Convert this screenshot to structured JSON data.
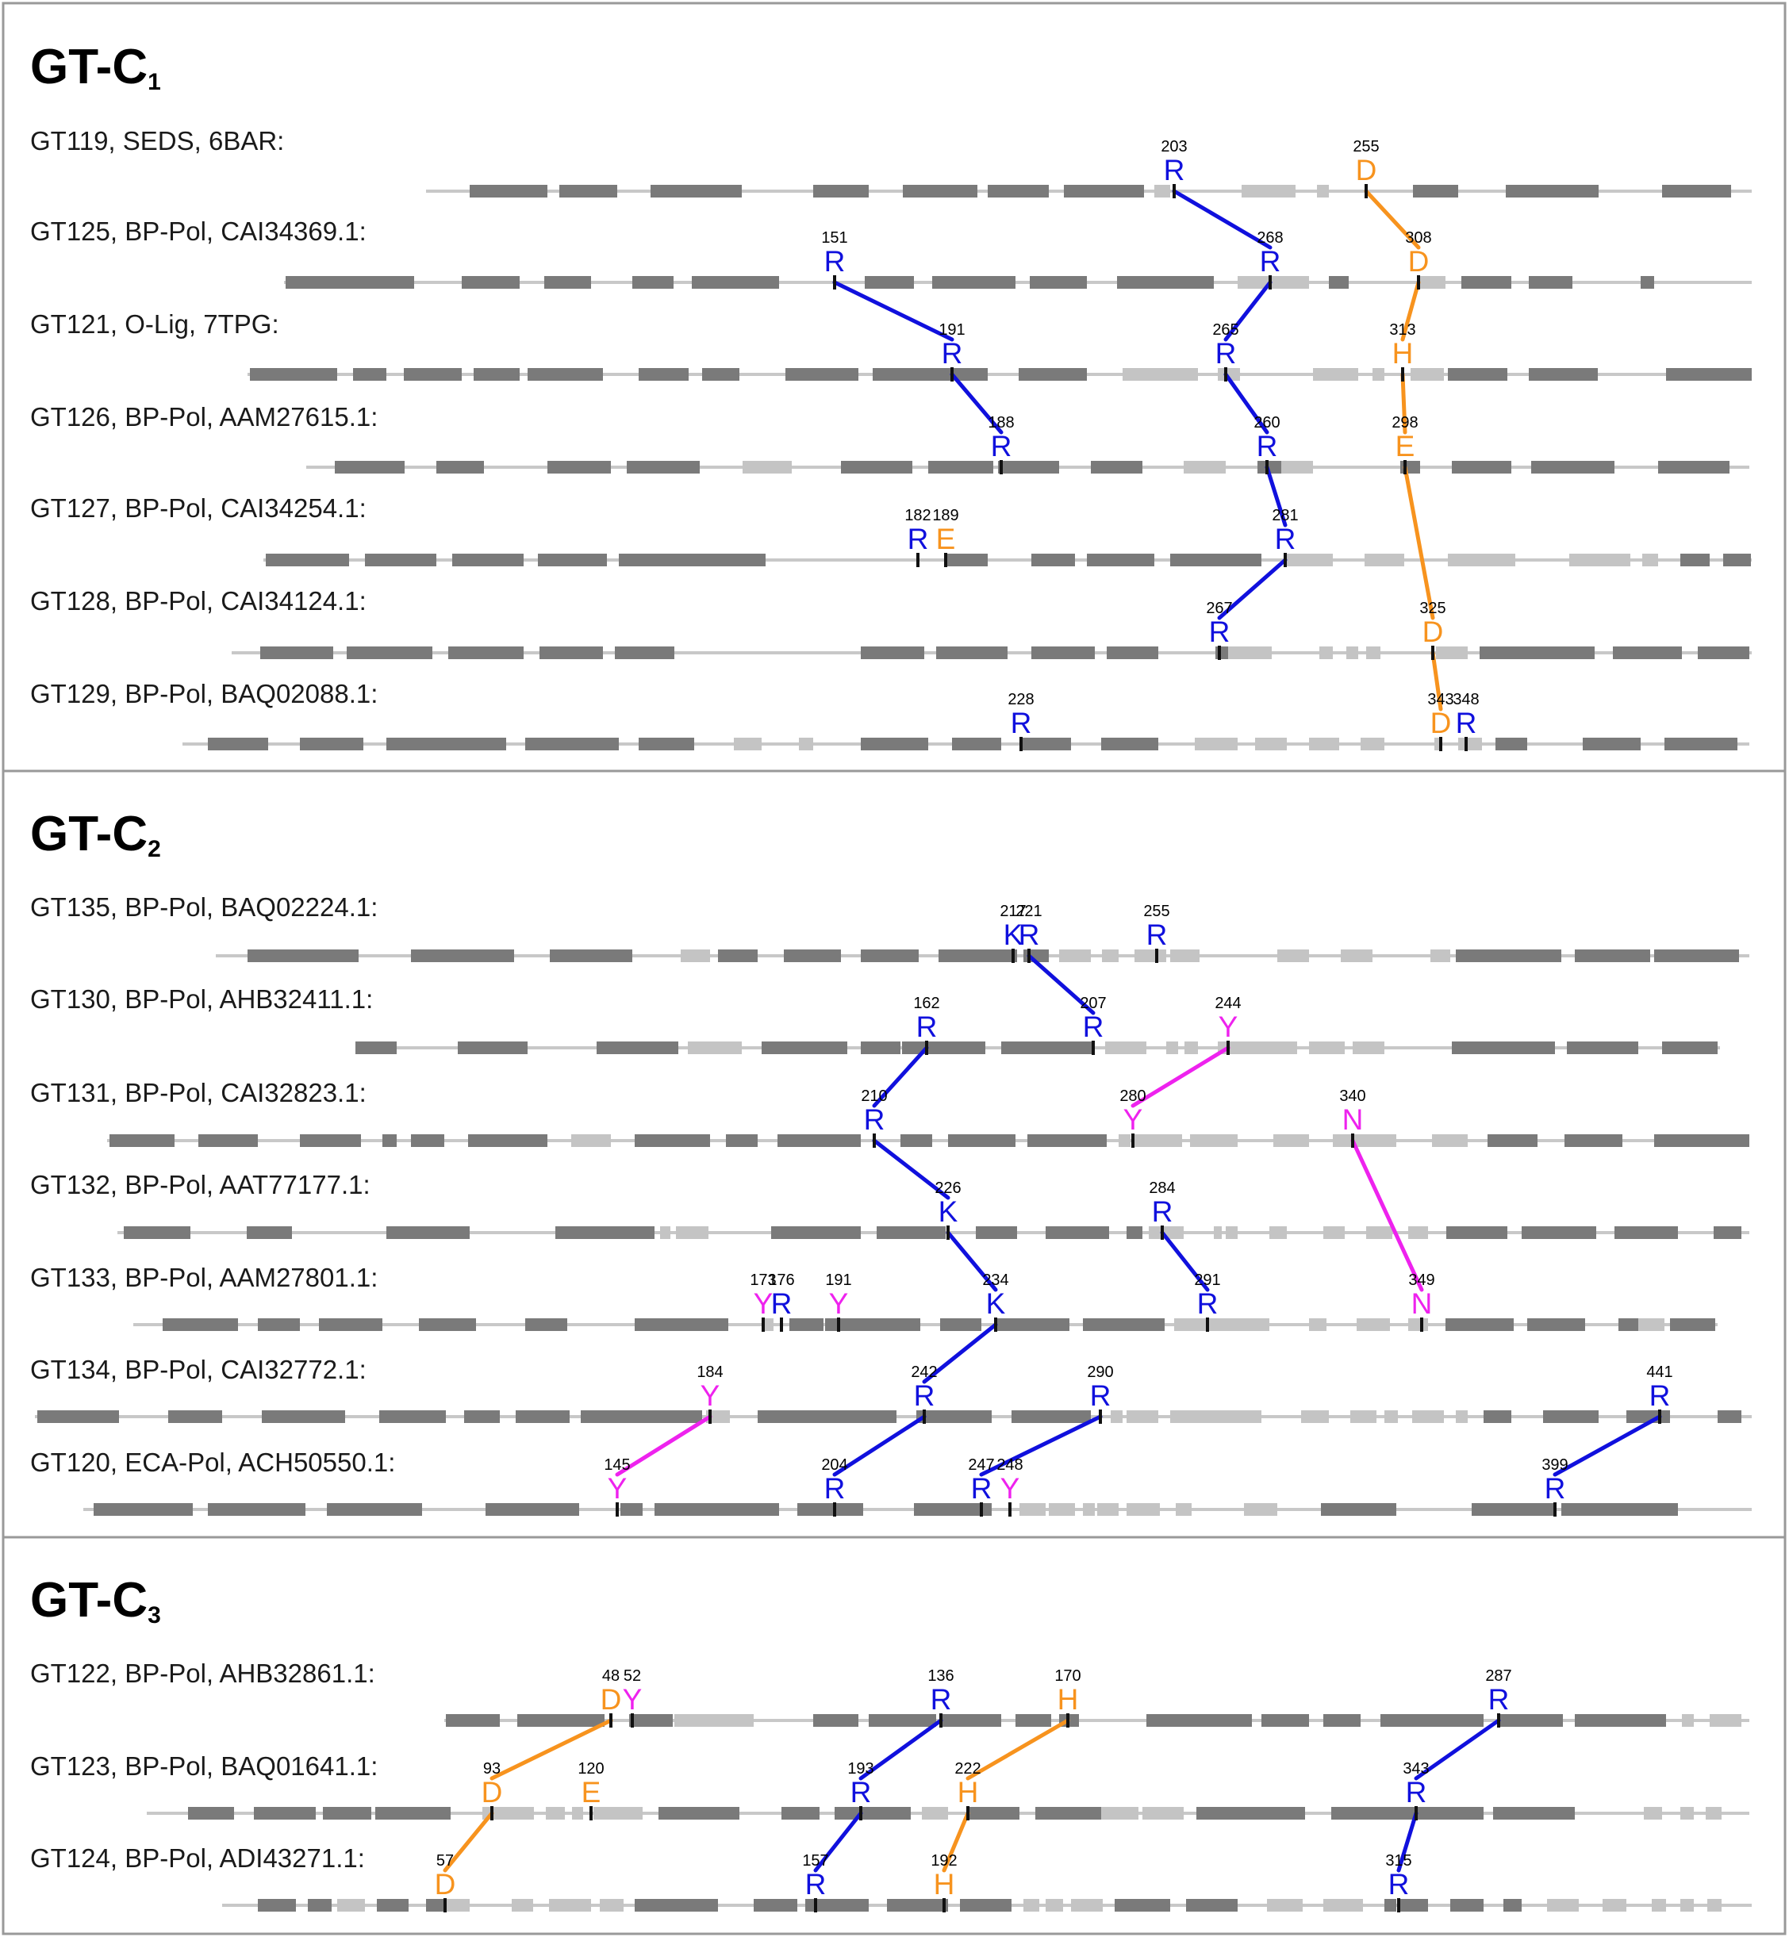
{
  "colors": {
    "blue": "#1010dd",
    "orange": "#f7931e",
    "magenta": "#ee22ee",
    "helix": "#7a7a7a",
    "strand": "#c4c4c4",
    "backbone": "#c8c8c8",
    "border": "#999999"
  },
  "panels": [
    {
      "title": "GT-C",
      "subscript": "1",
      "proteins": [
        {
          "label": "GT119, SEDS, 6BAR:"
        },
        {
          "label": "GT125, BP-Pol, CAI34369.1:"
        },
        {
          "label": "GT121, O-Lig, 7TPG:"
        },
        {
          "label": "GT126, BP-Pol, AAM27615.1:"
        },
        {
          "label": "GT127, BP-Pol, CAI34254.1:"
        },
        {
          "label": "GT128, BP-Pol, CAI34124.1:"
        },
        {
          "label": "GT129, BP-Pol, BAQ02088.1:"
        }
      ]
    },
    {
      "title": "GT-C",
      "subscript": "2",
      "proteins": [
        {
          "label": "GT135, BP-Pol, BAQ02224.1:"
        },
        {
          "label": "GT130, BP-Pol, AHB32411.1:"
        },
        {
          "label": "GT131, BP-Pol, CAI32823.1:"
        },
        {
          "label": "GT132, BP-Pol, AAT77177.1:"
        },
        {
          "label": "GT133, BP-Pol, AAM27801.1:"
        },
        {
          "label": "GT134, BP-Pol, CAI32772.1:"
        },
        {
          "label": "GT120, ECA-Pol, ACH50550.1:"
        }
      ]
    },
    {
      "title": "GT-C",
      "subscript": "3",
      "proteins": [
        {
          "label": "GT122, BP-Pol, AHB32861.1:"
        },
        {
          "label": "GT123, BP-Pol, BAQ01641.1:"
        },
        {
          "label": "GT124, BP-Pol, ADI43271.1:"
        }
      ]
    }
  ],
  "residues": [
    {
      "num": "203",
      "letter": "R",
      "color": "blue"
    },
    {
      "num": "255",
      "letter": "D",
      "color": "orange"
    },
    {
      "num": "151",
      "letter": "R",
      "color": "blue"
    },
    {
      "num": "268",
      "letter": "R",
      "color": "blue"
    },
    {
      "num": "308",
      "letter": "D",
      "color": "orange"
    },
    {
      "num": "191",
      "letter": "R",
      "color": "blue"
    },
    {
      "num": "265",
      "letter": "R",
      "color": "blue"
    },
    {
      "num": "313",
      "letter": "H",
      "color": "orange"
    },
    {
      "num": "188",
      "letter": "R",
      "color": "blue"
    },
    {
      "num": "260",
      "letter": "R",
      "color": "blue"
    },
    {
      "num": "298",
      "letter": "E",
      "color": "orange"
    },
    {
      "num": "182",
      "letter": "R",
      "color": "blue"
    },
    {
      "num": "189",
      "letter": "E",
      "color": "orange"
    },
    {
      "num": "281",
      "letter": "R",
      "color": "blue"
    },
    {
      "num": "267",
      "letter": "R",
      "color": "blue"
    },
    {
      "num": "325",
      "letter": "D",
      "color": "orange"
    },
    {
      "num": "228",
      "letter": "R",
      "color": "blue"
    },
    {
      "num": "343",
      "letter": "D",
      "color": "orange"
    },
    {
      "num": "348",
      "letter": "R",
      "color": "blue"
    },
    {
      "num": "217",
      "letter": "K",
      "color": "blue"
    },
    {
      "num": "221",
      "letter": "R",
      "color": "blue"
    },
    {
      "num": "255",
      "letter": "R",
      "color": "blue"
    },
    {
      "num": "162",
      "letter": "R",
      "color": "blue"
    },
    {
      "num": "207",
      "letter": "R",
      "color": "blue"
    },
    {
      "num": "244",
      "letter": "Y",
      "color": "magenta"
    },
    {
      "num": "210",
      "letter": "R",
      "color": "blue"
    },
    {
      "num": "280",
      "letter": "Y",
      "color": "magenta"
    },
    {
      "num": "340",
      "letter": "N",
      "color": "magenta"
    },
    {
      "num": "226",
      "letter": "K",
      "color": "blue"
    },
    {
      "num": "284",
      "letter": "R",
      "color": "blue"
    },
    {
      "num": "173",
      "letter": "Y",
      "color": "magenta"
    },
    {
      "num": "176",
      "letter": "R",
      "color": "blue"
    },
    {
      "num": "191",
      "letter": "Y",
      "color": "magenta"
    },
    {
      "num": "234",
      "letter": "K",
      "color": "blue"
    },
    {
      "num": "291",
      "letter": "R",
      "color": "blue"
    },
    {
      "num": "349",
      "letter": "N",
      "color": "magenta"
    },
    {
      "num": "184",
      "letter": "Y",
      "color": "magenta"
    },
    {
      "num": "242",
      "letter": "R",
      "color": "blue"
    },
    {
      "num": "290",
      "letter": "R",
      "color": "blue"
    },
    {
      "num": "441",
      "letter": "R",
      "color": "blue"
    },
    {
      "num": "145",
      "letter": "Y",
      "color": "magenta"
    },
    {
      "num": "204",
      "letter": "R",
      "color": "blue"
    },
    {
      "num": "247",
      "letter": "R",
      "color": "blue"
    },
    {
      "num": "248",
      "letter": "Y",
      "color": "magenta"
    },
    {
      "num": "399",
      "letter": "R",
      "color": "blue"
    },
    {
      "num": "48",
      "letter": "D",
      "color": "orange"
    },
    {
      "num": "52",
      "letter": "Y",
      "color": "magenta"
    },
    {
      "num": "136",
      "letter": "R",
      "color": "blue"
    },
    {
      "num": "170",
      "letter": "H",
      "color": "orange"
    },
    {
      "num": "287",
      "letter": "R",
      "color": "blue"
    },
    {
      "num": "93",
      "letter": "D",
      "color": "orange"
    },
    {
      "num": "120",
      "letter": "E",
      "color": "orange"
    },
    {
      "num": "193",
      "letter": "R",
      "color": "blue"
    },
    {
      "num": "222",
      "letter": "H",
      "color": "orange"
    },
    {
      "num": "343",
      "letter": "R",
      "color": "blue"
    },
    {
      "num": "57",
      "letter": "D",
      "color": "orange"
    },
    {
      "num": "157",
      "letter": "R",
      "color": "blue"
    },
    {
      "num": "192",
      "letter": "H",
      "color": "orange"
    },
    {
      "num": "315",
      "letter": "R",
      "color": "blue"
    }
  ],
  "connections": [
    {
      "from": 0,
      "to": 3,
      "color": "blue"
    },
    {
      "from": 1,
      "to": 4,
      "color": "orange"
    },
    {
      "from": 2,
      "to": 5,
      "color": "blue"
    },
    {
      "from": 3,
      "to": 6,
      "color": "blue"
    },
    {
      "from": 4,
      "to": 7,
      "color": "orange"
    },
    {
      "from": 5,
      "to": 8,
      "color": "blue"
    },
    {
      "from": 6,
      "to": 9,
      "color": "blue"
    },
    {
      "from": 7,
      "to": 10,
      "color": "orange"
    },
    {
      "from": 9,
      "to": 13,
      "color": "blue"
    },
    {
      "from": 10,
      "to": 15,
      "color": "orange"
    },
    {
      "from": 13,
      "to": 14,
      "color": "blue"
    },
    {
      "from": 15,
      "to": 17,
      "color": "orange"
    },
    {
      "from": 20,
      "to": 23,
      "color": "blue"
    },
    {
      "from": 24,
      "to": 26,
      "color": "magenta"
    },
    {
      "from": 22,
      "to": 25,
      "color": "blue"
    },
    {
      "from": 25,
      "to": 28,
      "color": "blue"
    },
    {
      "from": 27,
      "to": 35,
      "color": "magenta"
    },
    {
      "from": 28,
      "to": 33,
      "color": "blue"
    },
    {
      "from": 29,
      "to": 34,
      "color": "blue"
    },
    {
      "from": 33,
      "to": 37,
      "color": "blue"
    },
    {
      "from": 36,
      "to": 40,
      "color": "magenta"
    },
    {
      "from": 37,
      "to": 41,
      "color": "blue"
    },
    {
      "from": 38,
      "to": 42,
      "color": "blue"
    },
    {
      "from": 39,
      "to": 44,
      "color": "blue"
    },
    {
      "from": 45,
      "to": 50,
      "color": "orange"
    },
    {
      "from": 47,
      "to": 52,
      "color": "blue"
    },
    {
      "from": 48,
      "to": 53,
      "color": "orange"
    },
    {
      "from": 49,
      "to": 54,
      "color": "blue"
    },
    {
      "from": 50,
      "to": 55,
      "color": "orange"
    },
    {
      "from": 52,
      "to": 56,
      "color": "blue"
    },
    {
      "from": 53,
      "to": 57,
      "color": "orange"
    },
    {
      "from": 54,
      "to": 58,
      "color": "blue"
    }
  ]
}
